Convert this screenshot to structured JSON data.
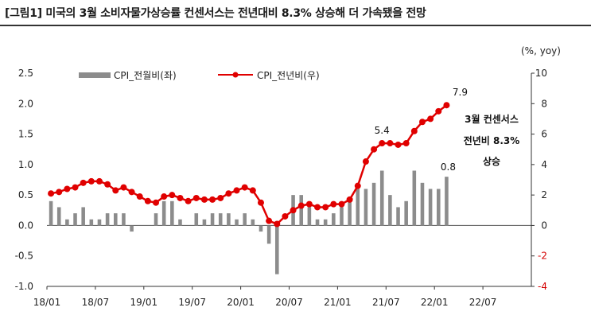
{
  "title": "[그림1] 미국의 3월 소비자물가상승률 컨센서스는 전년대비 8.3% 상승해 더 가속됐을 전망",
  "chart_data": {
    "type": "bar+line",
    "unit_label": "(%, yoy)",
    "x_ticks": [
      "18/01",
      "18/07",
      "19/01",
      "19/07",
      "20/01",
      "20/07",
      "21/01",
      "21/07",
      "22/01",
      "22/07"
    ],
    "left_axis": {
      "ylim": [
        -1.0,
        2.5
      ],
      "ticks": [
        "2.5",
        "2.0",
        "1.5",
        "1.0",
        "0.5",
        "0.0",
        "-0.5",
        "-1.0"
      ]
    },
    "right_axis": {
      "ylim": [
        -4,
        10
      ],
      "ticks": [
        "10",
        "8",
        "6",
        "4",
        "2",
        "0",
        "-2",
        "-4"
      ]
    },
    "series": [
      {
        "name": "CPI_전월비(좌)",
        "type": "bar",
        "axis": "left",
        "color": "#8c8c8c",
        "values": [
          0.4,
          0.3,
          0.1,
          0.2,
          0.3,
          0.1,
          0.1,
          0.2,
          0.2,
          0.2,
          -0.1,
          0.0,
          0.0,
          0.2,
          0.4,
          0.4,
          0.1,
          0.0,
          0.2,
          0.1,
          0.2,
          0.2,
          0.2,
          0.1,
          0.2,
          0.1,
          -0.1,
          -0.3,
          -0.8,
          0.0,
          0.5,
          0.5,
          0.3,
          0.1,
          0.1,
          0.2,
          0.3,
          0.4,
          0.6,
          0.6,
          0.7,
          0.9,
          0.5,
          0.3,
          0.4,
          0.9,
          0.7,
          0.6,
          0.6,
          0.8
        ]
      },
      {
        "name": "CPI_전년비(우)",
        "type": "line",
        "axis": "right",
        "color": "#e00000",
        "values": [
          2.1,
          2.2,
          2.4,
          2.5,
          2.8,
          2.9,
          2.9,
          2.7,
          2.3,
          2.5,
          2.2,
          1.9,
          1.6,
          1.5,
          1.9,
          2.0,
          1.8,
          1.6,
          1.8,
          1.7,
          1.7,
          1.8,
          2.1,
          2.3,
          2.5,
          2.3,
          1.5,
          0.3,
          0.1,
          0.6,
          1.0,
          1.3,
          1.4,
          1.2,
          1.2,
          1.4,
          1.4,
          1.7,
          2.6,
          4.2,
          5.0,
          5.4,
          5.4,
          5.3,
          5.4,
          6.2,
          6.8,
          7.0,
          7.5,
          7.9
        ]
      }
    ],
    "data_labels": [
      {
        "series": "CPI_전년비(우)",
        "index": 41,
        "text": "5.4"
      },
      {
        "series": "CPI_전년비(우)",
        "index": 49,
        "text": "7.9"
      },
      {
        "series": "CPI_전월비(좌)",
        "index": 49,
        "text": "0.8"
      }
    ],
    "annotation": [
      "3월 컨센서스",
      "전년비 8.3%",
      "상승"
    ],
    "legend_position": "top-left",
    "grid": false
  }
}
